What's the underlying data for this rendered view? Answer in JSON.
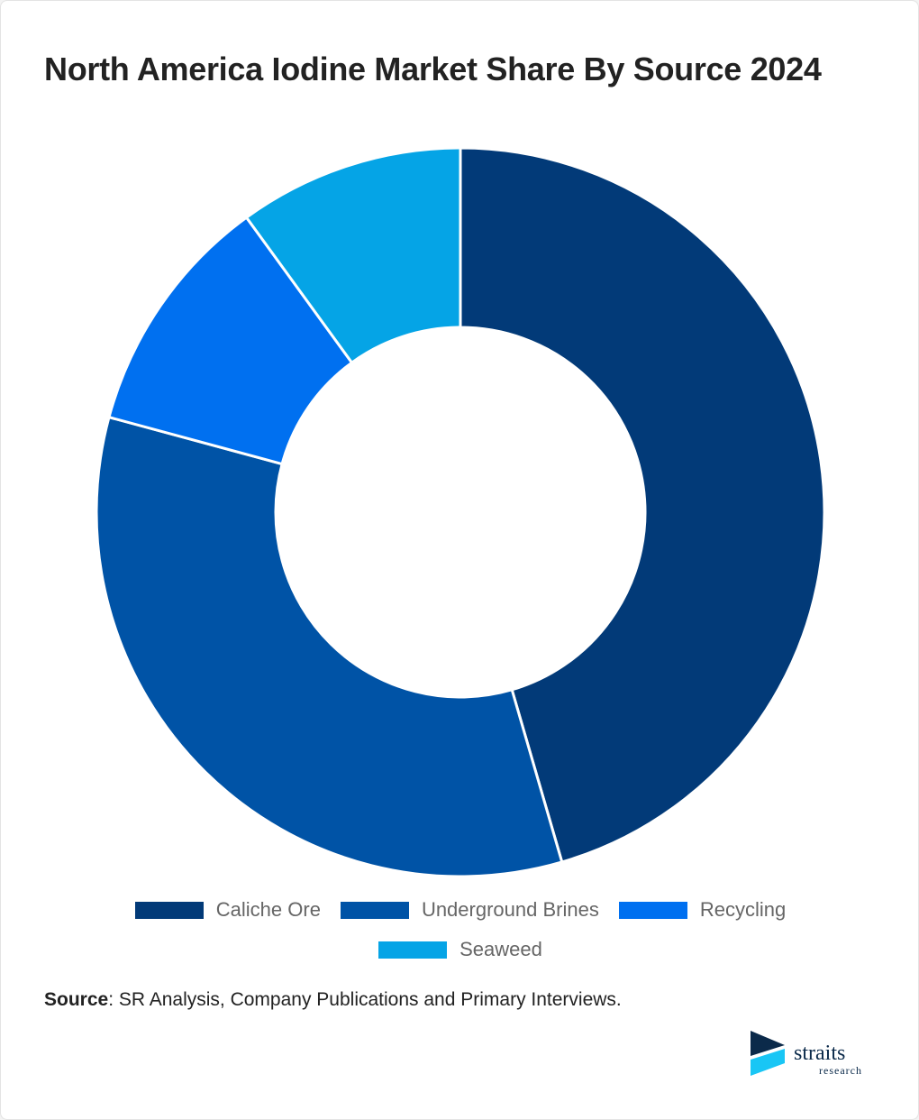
{
  "chart_data": {
    "type": "pie",
    "variant": "donut",
    "title": "North America Iodine Market Share By Source 2024",
    "categories": [
      "Caliche Ore",
      "Underground Brines",
      "Recycling",
      "Seaweed"
    ],
    "values": [
      45.5,
      33.7,
      10.8,
      10.0
    ],
    "unit": "%",
    "colors": [
      "#023a78",
      "#0053a6",
      "#0070f0",
      "#05a4e6"
    ],
    "legend_position": "bottom"
  },
  "source": {
    "label": "Source",
    "text": ": SR Analysis, Company Publications and Primary Interviews."
  },
  "logo": {
    "name": "straits",
    "sub": "research"
  }
}
